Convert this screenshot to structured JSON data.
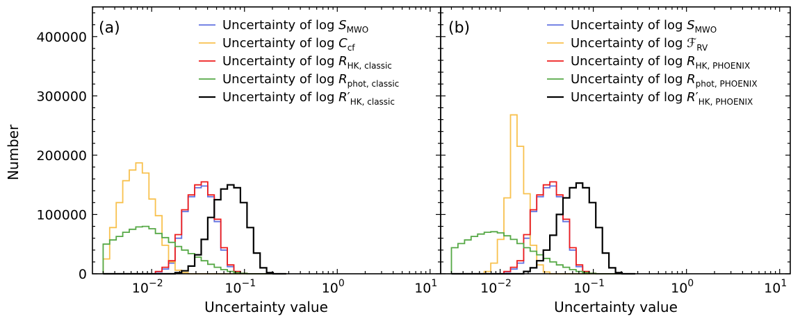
{
  "chart_data": [
    {
      "type": "histogram",
      "panel_label": "(a)",
      "xlabel": "Uncertainty value",
      "ylabel": "Number",
      "xscale": "log",
      "xlim": [
        0.0023,
        13
      ],
      "ylim": [
        0,
        450000
      ],
      "x_ticks": [
        {
          "value": 0.01,
          "base": "10",
          "exp": "−2"
        },
        {
          "value": 0.1,
          "base": "10",
          "exp": "−1"
        },
        {
          "value": 1,
          "base": "10",
          "exp": "0"
        },
        {
          "value": 10,
          "base": "10",
          "exp": "1"
        }
      ],
      "y_ticks": [
        {
          "value": 0,
          "label": "0"
        },
        {
          "value": 100000,
          "label": "100000"
        },
        {
          "value": 200000,
          "label": "200000"
        },
        {
          "value": 300000,
          "label": "300000"
        },
        {
          "value": 400000,
          "label": "400000"
        }
      ],
      "bin_edges": [
        0.003,
        0.00353,
        0.00415,
        0.00488,
        0.00574,
        0.00675,
        0.00794,
        0.00934,
        0.01098,
        0.01292,
        0.01519,
        0.01787,
        0.02101,
        0.02471,
        0.02907,
        0.03419,
        0.04021,
        0.04729,
        0.05562,
        0.06541,
        0.07693,
        0.09048,
        0.10642,
        0.12516,
        0.1472,
        0.17312,
        0.20361,
        0.23947,
        0.28164
      ],
      "legend_position": "top-right",
      "series": [
        {
          "name": "Uncertainty of log S_MWO",
          "label_prefix": "Uncertainty of log ",
          "symbol": "S",
          "subscript": "MWO",
          "prime": false,
          "color": "#6272e0",
          "values": [
            0,
            0,
            0,
            0,
            0,
            0,
            0,
            0,
            3000,
            8000,
            18000,
            60000,
            105000,
            130000,
            145000,
            148000,
            130000,
            88000,
            40000,
            12000,
            3000,
            500,
            0,
            0,
            0,
            0,
            0,
            0
          ]
        },
        {
          "name": "Uncertainty of log C_cf",
          "label_prefix": "Uncertainty of log ",
          "symbol": "C",
          "subscript": "cf",
          "prime": false,
          "color": "#f8c14e",
          "values": [
            25000,
            78000,
            120000,
            157000,
            175000,
            187000,
            170000,
            126000,
            98000,
            48000,
            20000,
            6000,
            2000,
            0,
            0,
            0,
            0,
            0,
            0,
            0,
            0,
            0,
            0,
            0,
            0,
            0,
            0,
            0
          ]
        },
        {
          "name": "Uncertainty of log R_HK,classic",
          "label_prefix": "Uncertainty of log ",
          "symbol": "R",
          "subscript": "HK, classic",
          "prime": false,
          "color": "#ee1c1c",
          "values": [
            0,
            0,
            0,
            0,
            0,
            0,
            0,
            0,
            4000,
            11000,
            22000,
            66000,
            108000,
            133000,
            150000,
            155000,
            133000,
            92000,
            44000,
            15000,
            4000,
            800,
            0,
            0,
            0,
            0,
            0,
            0
          ]
        },
        {
          "name": "Uncertainty of log R_phot,classic",
          "label_prefix": "Uncertainty of log ",
          "symbol": "R",
          "subscript": "phot, classic",
          "prime": false,
          "color": "#55a845",
          "values": [
            50000,
            57000,
            63000,
            70000,
            75000,
            79000,
            80000,
            76000,
            68000,
            61000,
            53000,
            46000,
            40000,
            34000,
            28000,
            22000,
            16000,
            11000,
            7000,
            4000,
            2000,
            800,
            0,
            0,
            0,
            0,
            0,
            0
          ]
        },
        {
          "name": "Uncertainty of log R'_HK,classic",
          "label_prefix": "Uncertainty of log ",
          "symbol": "R",
          "subscript": "HK, classic",
          "prime": true,
          "color": "#000000",
          "values": [
            0,
            0,
            0,
            0,
            0,
            0,
            0,
            0,
            0,
            0,
            0,
            2000,
            5000,
            13000,
            32000,
            58000,
            95000,
            125000,
            143000,
            150000,
            145000,
            120000,
            78000,
            35000,
            10000,
            2000,
            0,
            0
          ]
        }
      ]
    },
    {
      "type": "histogram",
      "panel_label": "(b)",
      "xlabel": "Uncertainty value",
      "ylabel": "",
      "xscale": "log",
      "xlim": [
        0.0023,
        13
      ],
      "ylim": [
        0,
        450000
      ],
      "x_ticks": [
        {
          "value": 0.01,
          "base": "10",
          "exp": "−2"
        },
        {
          "value": 0.1,
          "base": "10",
          "exp": "−1"
        },
        {
          "value": 1,
          "base": "10",
          "exp": "0"
        },
        {
          "value": 10,
          "base": "10",
          "exp": "1"
        }
      ],
      "y_ticks": [],
      "bin_edges": [
        0.003,
        0.00353,
        0.00415,
        0.00488,
        0.00574,
        0.00675,
        0.00794,
        0.00934,
        0.01098,
        0.01292,
        0.01519,
        0.01787,
        0.02101,
        0.02471,
        0.02907,
        0.03419,
        0.04021,
        0.04729,
        0.05562,
        0.06541,
        0.07693,
        0.09048,
        0.10642,
        0.12516,
        0.1472,
        0.17312,
        0.20361,
        0.23947,
        0.28164
      ],
      "legend_position": "top-right",
      "series": [
        {
          "name": "Uncertainty of log S_MWO",
          "label_prefix": "Uncertainty of log ",
          "symbol": "S",
          "subscript": "MWO",
          "prime": false,
          "color": "#6272e0",
          "values": [
            0,
            0,
            0,
            0,
            0,
            0,
            0,
            0,
            3000,
            8000,
            18000,
            60000,
            105000,
            130000,
            145000,
            148000,
            130000,
            88000,
            40000,
            12000,
            3000,
            500,
            0,
            0,
            0,
            0,
            0,
            0
          ]
        },
        {
          "name": "Uncertainty of log F_RV",
          "label_prefix": "Uncertainty of log ",
          "symbol": "ℱ",
          "subscript": "RV",
          "prime": false,
          "color": "#f8c14e",
          "values": [
            0,
            0,
            0,
            0,
            0,
            4000,
            18000,
            58000,
            128000,
            268000,
            215000,
            135000,
            48000,
            15000,
            3000,
            0,
            0,
            0,
            0,
            0,
            0,
            0,
            0,
            0,
            0,
            0,
            0,
            0
          ]
        },
        {
          "name": "Uncertainty of log R_HK,PHOENIX",
          "label_prefix": "Uncertainty of log ",
          "symbol": "R",
          "subscript": "HK, PHOENIX",
          "prime": false,
          "color": "#ee1c1c",
          "values": [
            0,
            0,
            0,
            0,
            0,
            0,
            0,
            0,
            4000,
            11000,
            22000,
            66000,
            108000,
            133000,
            150000,
            155000,
            133000,
            92000,
            44000,
            15000,
            4000,
            800,
            0,
            0,
            0,
            0,
            0,
            0
          ]
        },
        {
          "name": "Uncertainty of log R_phot,PHOENIX",
          "label_prefix": "Uncertainty of log ",
          "symbol": "R",
          "subscript": "phot, PHOENIX",
          "prime": false,
          "color": "#55a845",
          "values": [
            44000,
            51000,
            57000,
            63000,
            67000,
            70000,
            71000,
            69000,
            64000,
            58000,
            51000,
            44000,
            38000,
            32000,
            26000,
            20000,
            15000,
            11000,
            7000,
            4000,
            2000,
            800,
            0,
            0,
            0,
            0,
            0,
            0
          ]
        },
        {
          "name": "Uncertainty of log R'_HK,PHOENIX",
          "label_prefix": "Uncertainty of log ",
          "symbol": "R",
          "subscript": "HK, PHOENIX",
          "prime": true,
          "color": "#000000",
          "values": [
            0,
            0,
            0,
            0,
            0,
            0,
            0,
            0,
            0,
            0,
            0,
            4000,
            10000,
            22000,
            40000,
            65000,
            100000,
            128000,
            145000,
            153000,
            145000,
            120000,
            78000,
            35000,
            10000,
            2000,
            0,
            0
          ]
        }
      ]
    }
  ]
}
